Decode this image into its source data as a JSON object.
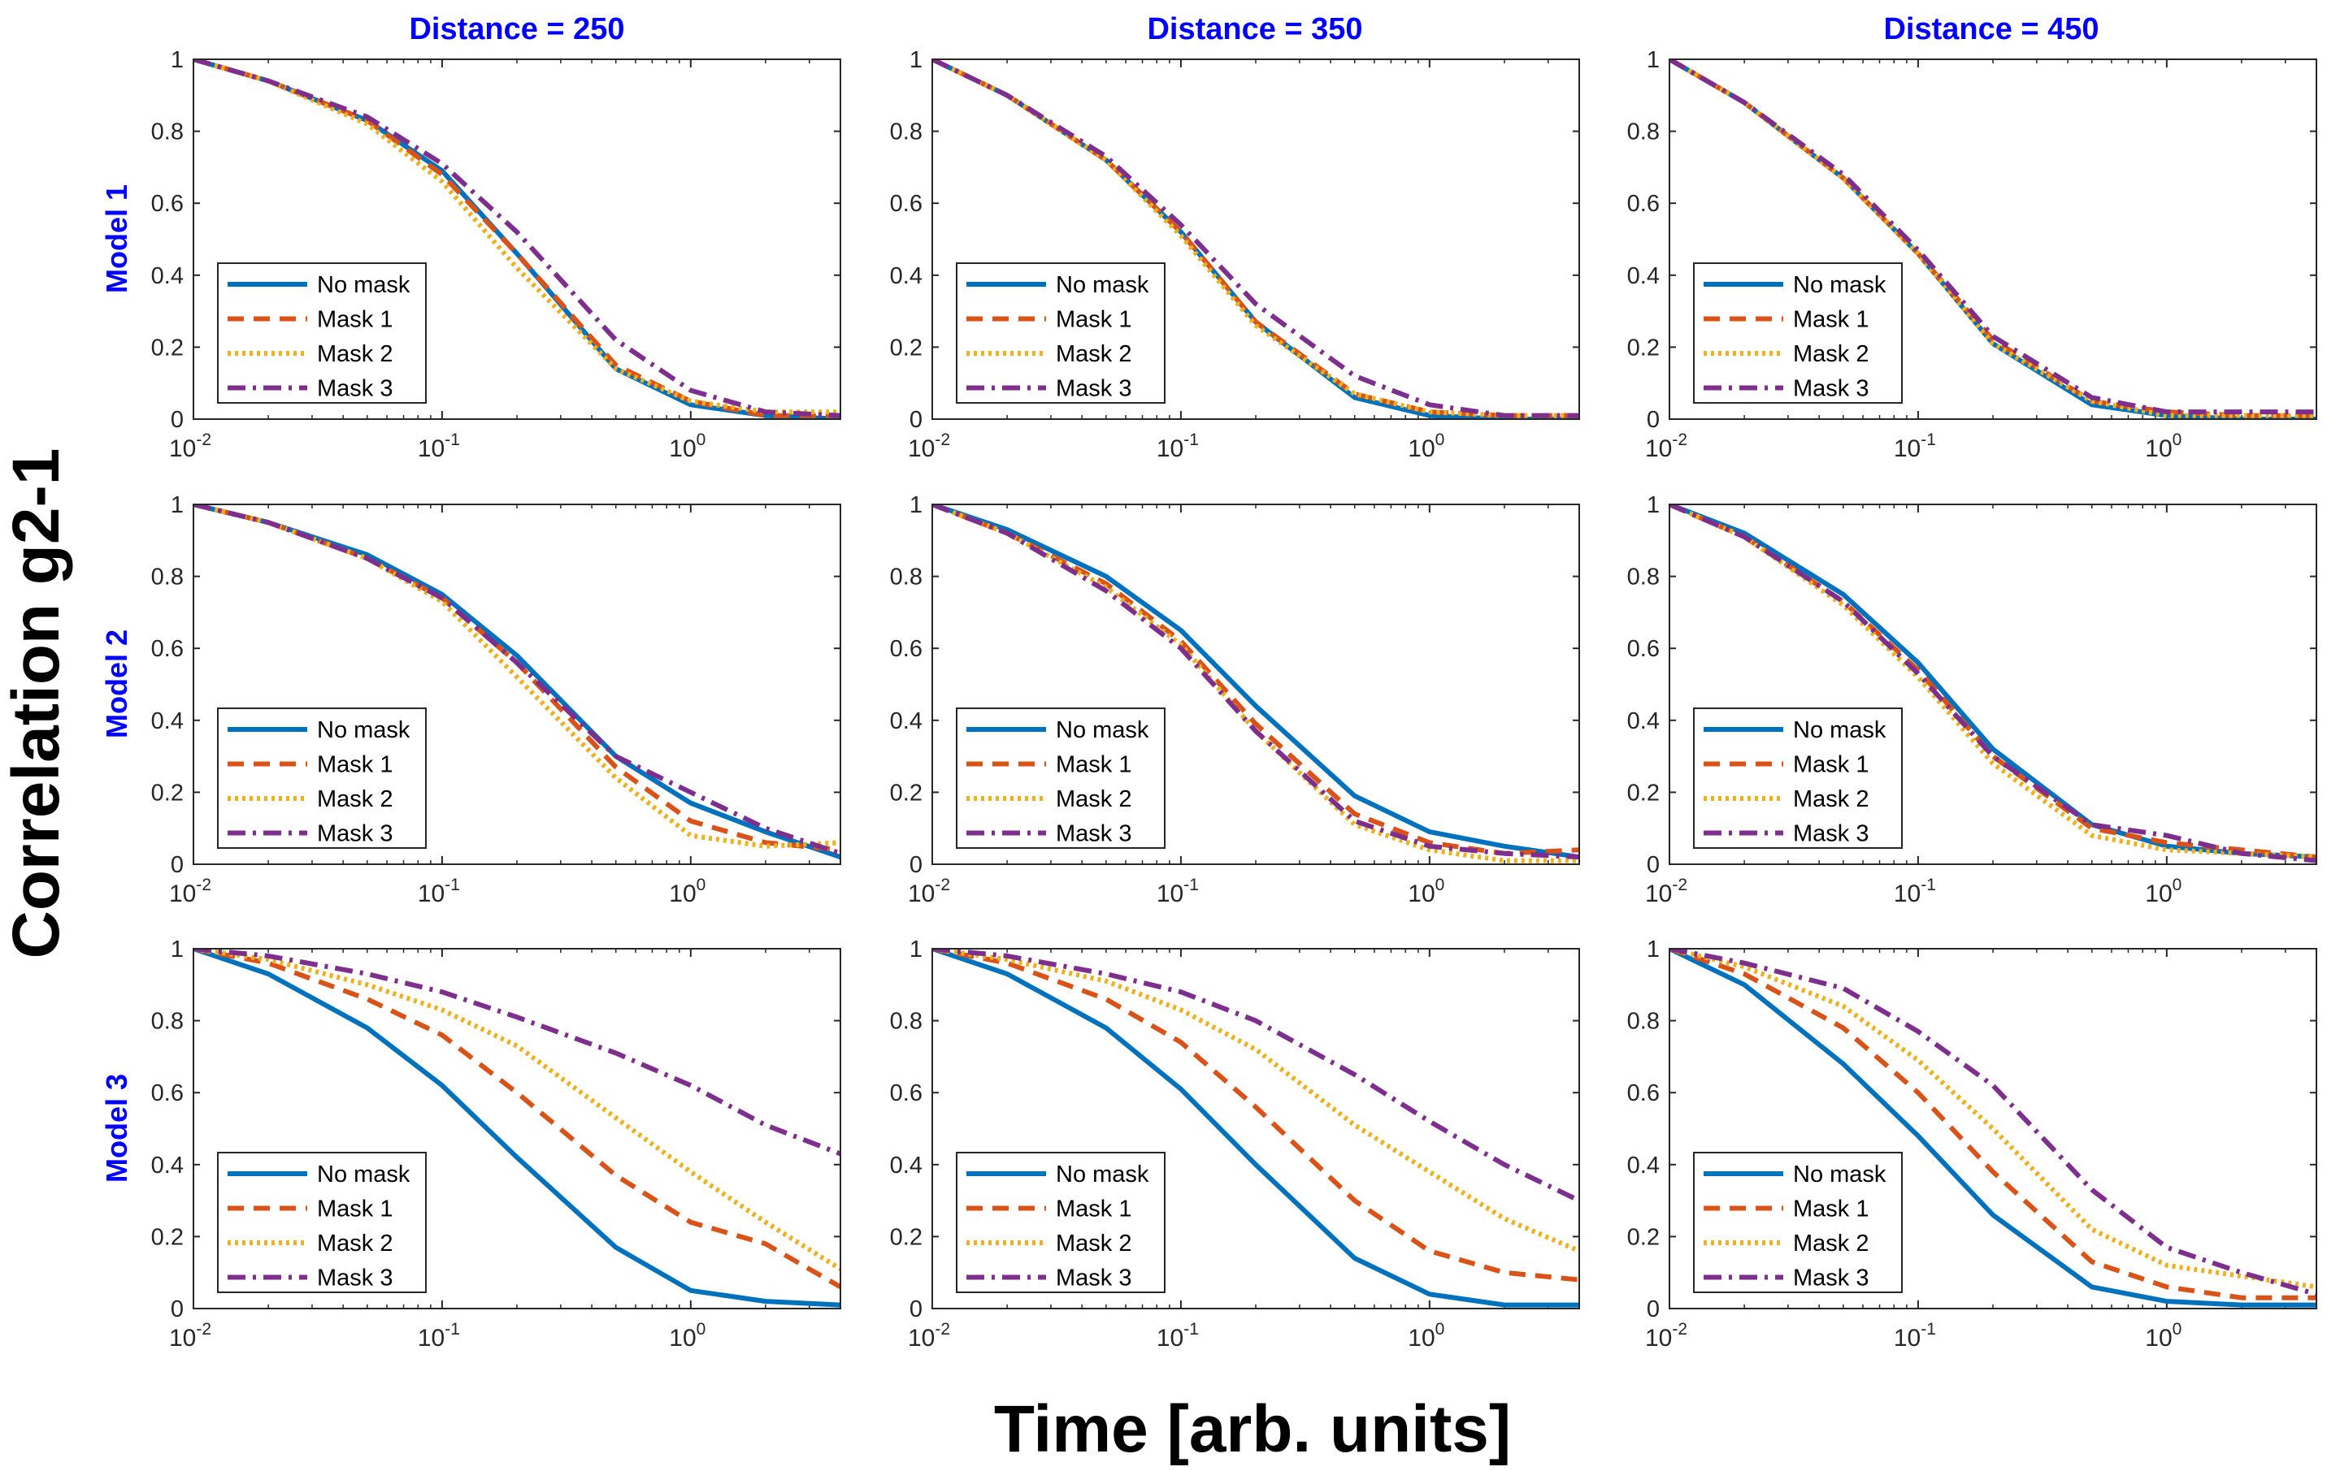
{
  "figure": {
    "ylabel": "Correlation g2-1",
    "xlabel": "Time [arb. units]",
    "column_titles": [
      "Distance = 250",
      "Distance = 350",
      "Distance = 450"
    ],
    "row_labels": [
      "Model 1",
      "Model 2",
      "Model 3"
    ],
    "title_color": "#0000ff"
  },
  "legend": {
    "entries": [
      {
        "label": "No mask",
        "color": "#0072bd",
        "style": "solid"
      },
      {
        "label": "Mask 1",
        "color": "#d95319",
        "style": "dashed"
      },
      {
        "label": "Mask 2",
        "color": "#edb120",
        "style": "dotted"
      },
      {
        "label": "Mask 3",
        "color": "#7e2f8e",
        "style": "dashdot"
      }
    ]
  },
  "chart_data": {
    "type": "line",
    "xscale": "log",
    "xlim": [
      0.01,
      4
    ],
    "ylim": [
      0,
      1
    ],
    "xticks": [
      0.01,
      0.1,
      1
    ],
    "xtick_labels": [
      [
        "10",
        "-2"
      ],
      [
        "10",
        "-1"
      ],
      [
        "10",
        "0"
      ]
    ],
    "yticks": [
      0,
      0.2,
      0.4,
      0.6,
      0.8,
      1
    ],
    "ytick_labels": [
      "0",
      "0.2",
      "0.4",
      "0.6",
      "0.8",
      "1"
    ],
    "x": [
      0.01,
      0.02,
      0.05,
      0.1,
      0.2,
      0.5,
      1,
      2,
      4
    ],
    "panels": [
      {
        "row": "Model 1",
        "column": "Distance = 250",
        "series": [
          {
            "name": "No mask",
            "values": [
              1,
              0.94,
              0.83,
              0.69,
              0.46,
              0.14,
              0.04,
              0.01,
              0.0
            ]
          },
          {
            "name": "Mask 1",
            "values": [
              1,
              0.94,
              0.83,
              0.68,
              0.46,
              0.15,
              0.05,
              0.01,
              0.01
            ]
          },
          {
            "name": "Mask 2",
            "values": [
              1,
              0.94,
              0.82,
              0.66,
              0.42,
              0.14,
              0.05,
              0.02,
              0.02
            ]
          },
          {
            "name": "Mask 3",
            "values": [
              1,
              0.94,
              0.84,
              0.71,
              0.52,
              0.22,
              0.08,
              0.02,
              0.01
            ]
          }
        ]
      },
      {
        "row": "Model 1",
        "column": "Distance = 350",
        "series": [
          {
            "name": "No mask",
            "values": [
              1,
              0.9,
              0.72,
              0.52,
              0.27,
              0.06,
              0.01,
              0.0,
              0.0
            ]
          },
          {
            "name": "Mask 1",
            "values": [
              1,
              0.9,
              0.72,
              0.52,
              0.27,
              0.07,
              0.02,
              0.01,
              0.01
            ]
          },
          {
            "name": "Mask 2",
            "values": [
              1,
              0.9,
              0.72,
              0.51,
              0.26,
              0.07,
              0.02,
              0.01,
              0.01
            ]
          },
          {
            "name": "Mask 3",
            "values": [
              1,
              0.9,
              0.73,
              0.54,
              0.32,
              0.12,
              0.04,
              0.01,
              0.01
            ]
          }
        ]
      },
      {
        "row": "Model 1",
        "column": "Distance = 450",
        "series": [
          {
            "name": "No mask",
            "values": [
              1,
              0.88,
              0.67,
              0.46,
              0.21,
              0.04,
              0.01,
              0.0,
              0.0
            ]
          },
          {
            "name": "Mask 1",
            "values": [
              1,
              0.88,
              0.67,
              0.46,
              0.22,
              0.05,
              0.02,
              0.01,
              0.01
            ]
          },
          {
            "name": "Mask 2",
            "values": [
              1,
              0.88,
              0.67,
              0.46,
              0.21,
              0.05,
              0.01,
              0.01,
              0.01
            ]
          },
          {
            "name": "Mask 3",
            "values": [
              1,
              0.88,
              0.68,
              0.47,
              0.23,
              0.06,
              0.02,
              0.02,
              0.02
            ]
          }
        ]
      },
      {
        "row": "Model 2",
        "column": "Distance = 250",
        "series": [
          {
            "name": "No mask",
            "values": [
              1,
              0.95,
              0.86,
              0.75,
              0.58,
              0.3,
              0.17,
              0.09,
              0.02
            ]
          },
          {
            "name": "Mask 1",
            "values": [
              1,
              0.95,
              0.85,
              0.74,
              0.56,
              0.27,
              0.12,
              0.06,
              0.04
            ]
          },
          {
            "name": "Mask 2",
            "values": [
              1,
              0.95,
              0.85,
              0.73,
              0.52,
              0.24,
              0.08,
              0.05,
              0.06
            ]
          },
          {
            "name": "Mask 3",
            "values": [
              1,
              0.95,
              0.85,
              0.74,
              0.56,
              0.3,
              0.2,
              0.1,
              0.03
            ]
          }
        ]
      },
      {
        "row": "Model 2",
        "column": "Distance = 350",
        "series": [
          {
            "name": "No mask",
            "values": [
              1,
              0.93,
              0.8,
              0.65,
              0.44,
              0.19,
              0.09,
              0.05,
              0.02
            ]
          },
          {
            "name": "Mask 1",
            "values": [
              1,
              0.92,
              0.78,
              0.62,
              0.39,
              0.14,
              0.06,
              0.03,
              0.04
            ]
          },
          {
            "name": "Mask 2",
            "values": [
              1,
              0.92,
              0.77,
              0.61,
              0.37,
              0.11,
              0.04,
              0.01,
              0.01
            ]
          },
          {
            "name": "Mask 3",
            "values": [
              1,
              0.92,
              0.76,
              0.6,
              0.37,
              0.12,
              0.05,
              0.03,
              0.02
            ]
          }
        ]
      },
      {
        "row": "Model 2",
        "column": "Distance = 450",
        "series": [
          {
            "name": "No mask",
            "values": [
              1,
              0.92,
              0.75,
              0.56,
              0.32,
              0.11,
              0.05,
              0.03,
              0.02
            ]
          },
          {
            "name": "Mask 1",
            "values": [
              1,
              0.91,
              0.73,
              0.54,
              0.3,
              0.1,
              0.06,
              0.04,
              0.02
            ]
          },
          {
            "name": "Mask 2",
            "values": [
              1,
              0.91,
              0.72,
              0.52,
              0.28,
              0.08,
              0.04,
              0.03,
              0.02
            ]
          },
          {
            "name": "Mask 3",
            "values": [
              1,
              0.91,
              0.73,
              0.53,
              0.3,
              0.11,
              0.08,
              0.03,
              0.01
            ]
          }
        ]
      },
      {
        "row": "Model 3",
        "column": "Distance = 250",
        "series": [
          {
            "name": "No mask",
            "values": [
              1,
              0.93,
              0.78,
              0.62,
              0.42,
              0.17,
              0.05,
              0.02,
              0.01
            ]
          },
          {
            "name": "Mask 1",
            "values": [
              1,
              0.96,
              0.86,
              0.76,
              0.6,
              0.37,
              0.24,
              0.18,
              0.06
            ]
          },
          {
            "name": "Mask 2",
            "values": [
              1,
              0.97,
              0.9,
              0.83,
              0.73,
              0.53,
              0.38,
              0.24,
              0.11
            ]
          },
          {
            "name": "Mask 3",
            "values": [
              1,
              0.98,
              0.93,
              0.88,
              0.81,
              0.71,
              0.62,
              0.51,
              0.43
            ]
          }
        ]
      },
      {
        "row": "Model 3",
        "column": "Distance = 350",
        "series": [
          {
            "name": "No mask",
            "values": [
              1,
              0.93,
              0.78,
              0.61,
              0.4,
              0.14,
              0.04,
              0.01,
              0.01
            ]
          },
          {
            "name": "Mask 1",
            "values": [
              1,
              0.96,
              0.86,
              0.74,
              0.56,
              0.3,
              0.16,
              0.1,
              0.08
            ]
          },
          {
            "name": "Mask 2",
            "values": [
              1,
              0.97,
              0.91,
              0.83,
              0.72,
              0.51,
              0.38,
              0.25,
              0.16
            ]
          },
          {
            "name": "Mask 3",
            "values": [
              1,
              0.98,
              0.93,
              0.88,
              0.8,
              0.65,
              0.52,
              0.4,
              0.3
            ]
          }
        ]
      },
      {
        "row": "Model 3",
        "column": "Distance = 450",
        "series": [
          {
            "name": "No mask",
            "values": [
              1,
              0.9,
              0.68,
              0.48,
              0.26,
              0.06,
              0.02,
              0.01,
              0.01
            ]
          },
          {
            "name": "Mask 1",
            "values": [
              1,
              0.93,
              0.78,
              0.6,
              0.38,
              0.13,
              0.06,
              0.03,
              0.03
            ]
          },
          {
            "name": "Mask 2",
            "values": [
              1,
              0.95,
              0.84,
              0.69,
              0.5,
              0.22,
              0.12,
              0.09,
              0.06
            ]
          },
          {
            "name": "Mask 3",
            "values": [
              1,
              0.96,
              0.89,
              0.77,
              0.62,
              0.33,
              0.17,
              0.1,
              0.04
            ]
          }
        ]
      }
    ]
  }
}
